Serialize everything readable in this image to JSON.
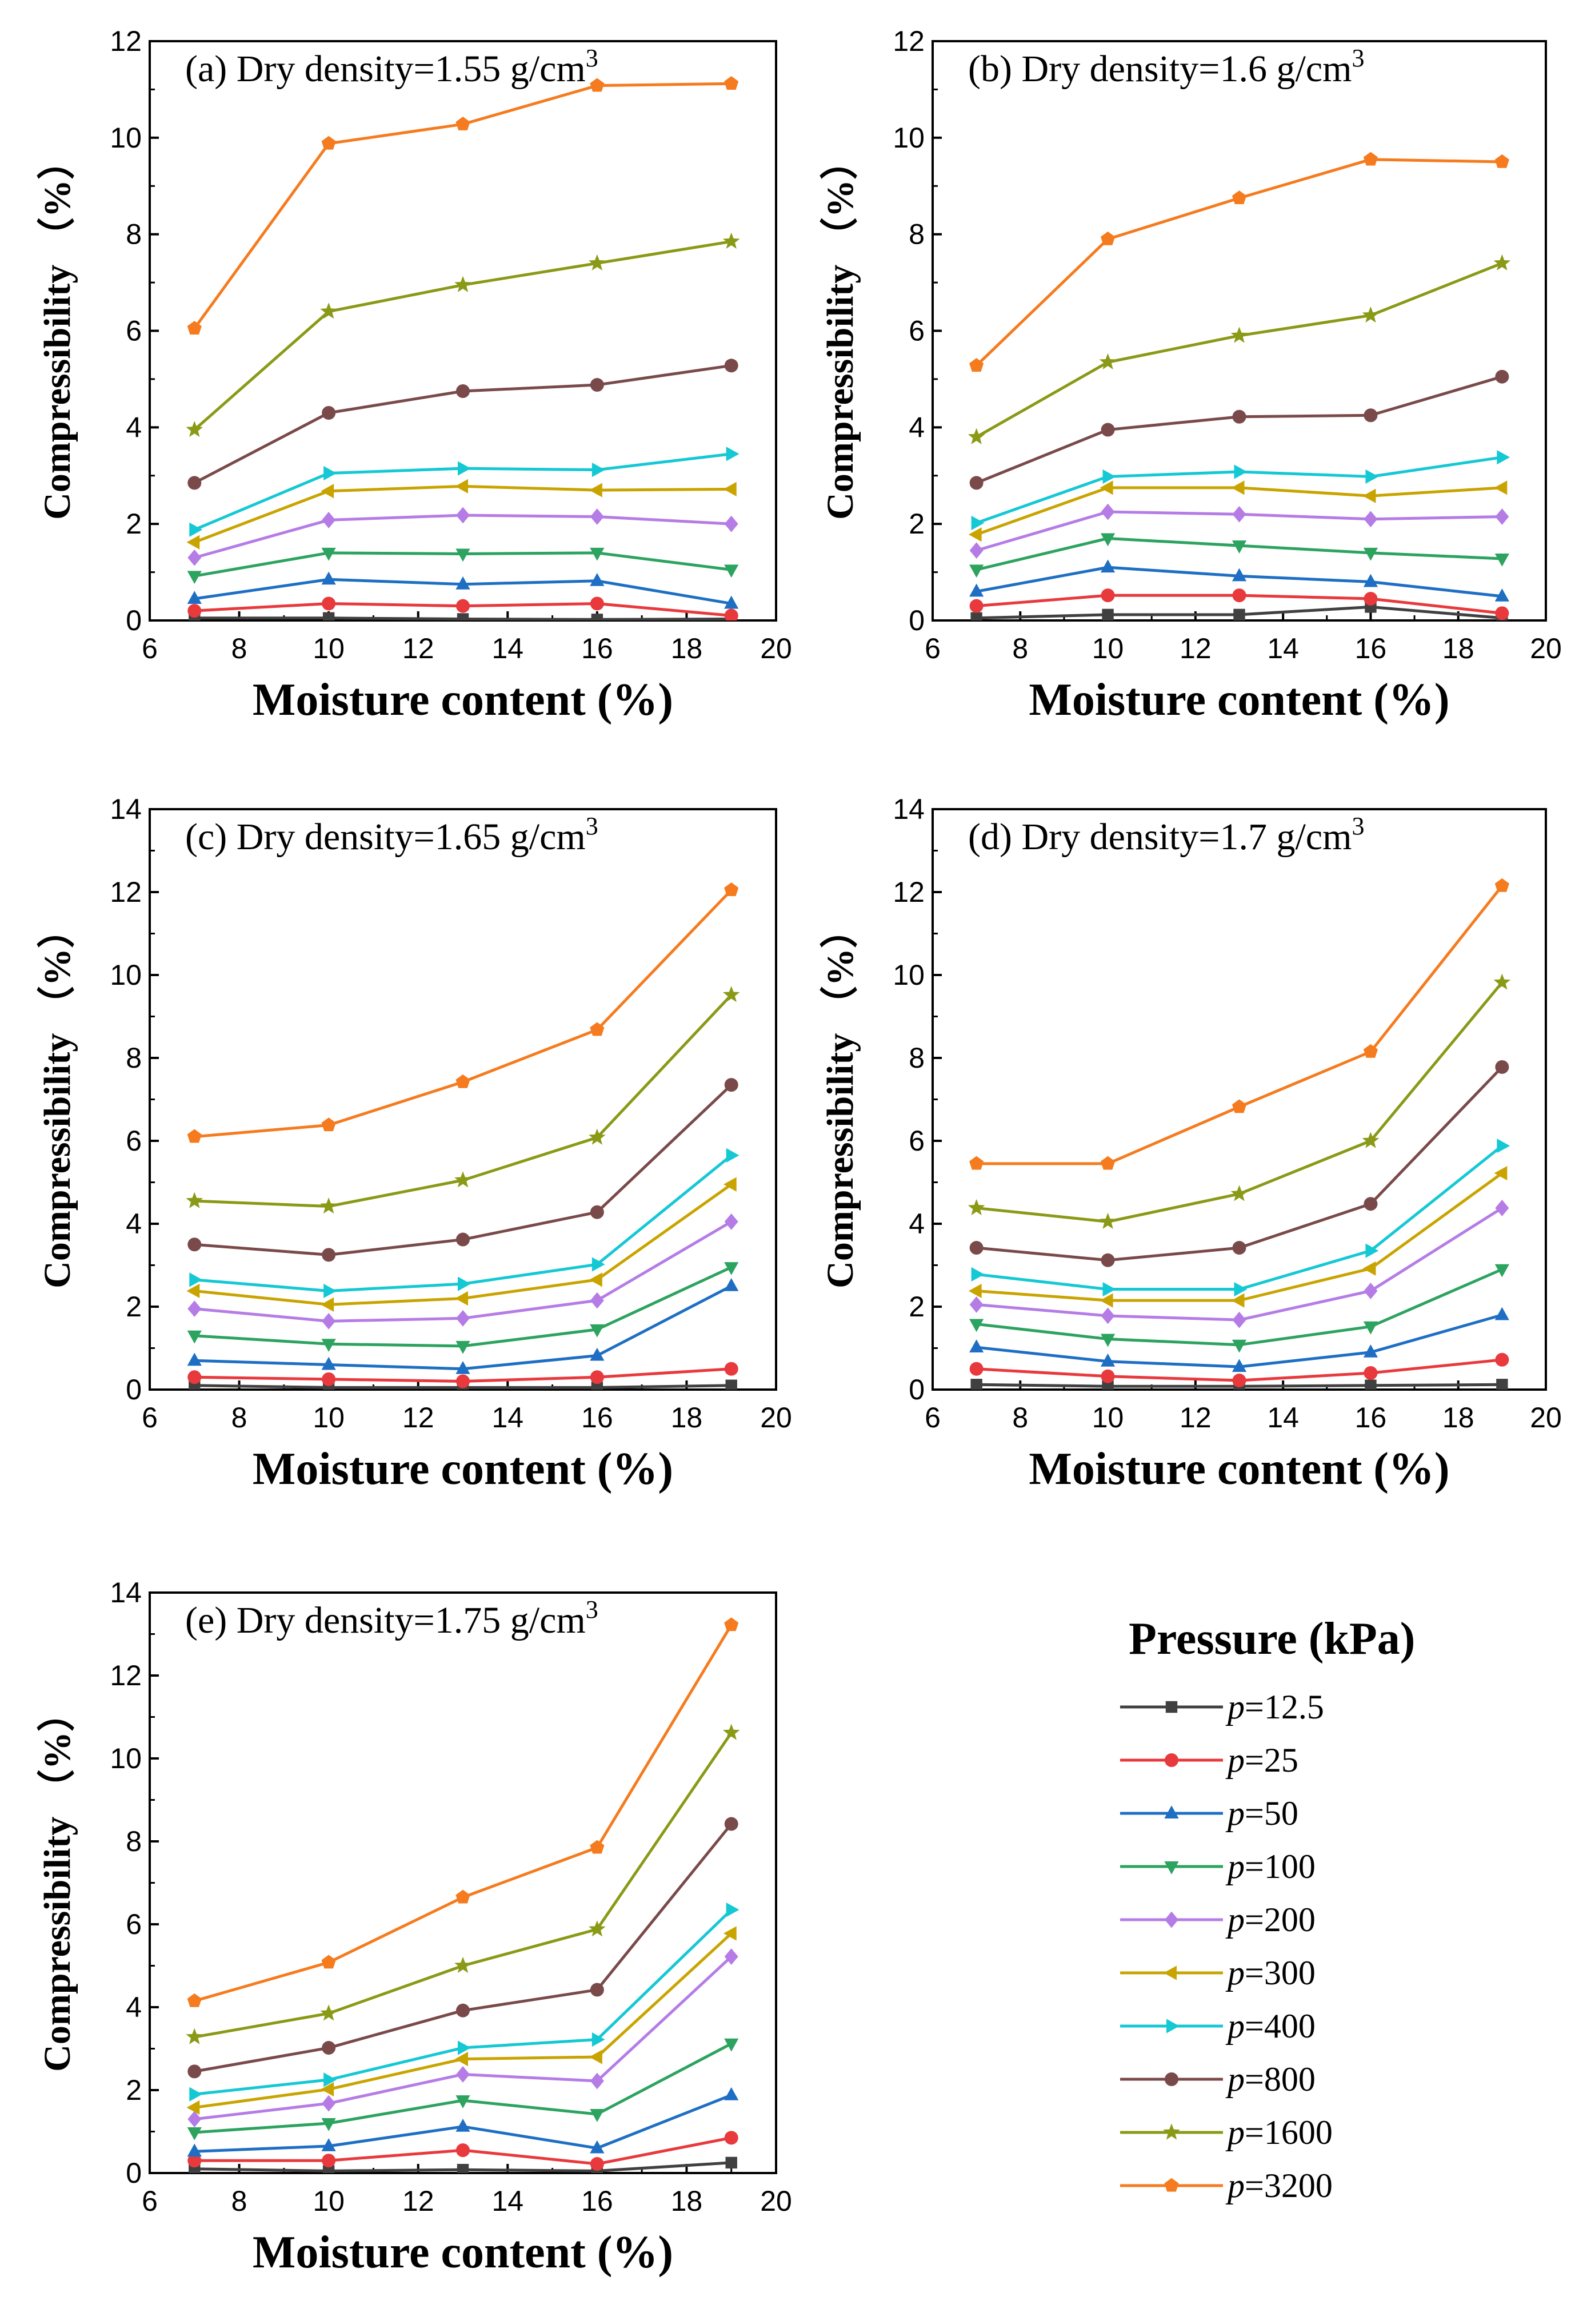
{
  "figure": {
    "legend_title": "Pressure (kPa)"
  },
  "chart_data": [
    {
      "type": "line",
      "title": "(a) Dry density=1.55 g/cm3",
      "title_text": "(a) Dry density=1.55 g/cm",
      "title_sup": "3",
      "xlabel": "Moisture content (%)",
      "ylabel": "Compressibility （%）",
      "xlim": [
        6,
        20
      ],
      "ylim": [
        0,
        12
      ],
      "xticks": [
        6,
        8,
        10,
        12,
        14,
        16,
        18,
        20
      ],
      "yticks": [
        0,
        2,
        4,
        6,
        8,
        10,
        12
      ],
      "x": [
        7,
        10,
        13,
        16,
        19
      ],
      "series": [
        {
          "name": "p=12.5",
          "values": [
            0.05,
            0.05,
            0.03,
            0.02,
            0.03
          ]
        },
        {
          "name": "p=25",
          "values": [
            0.2,
            0.35,
            0.3,
            0.35,
            0.1
          ]
        },
        {
          "name": "p=50",
          "values": [
            0.45,
            0.85,
            0.75,
            0.82,
            0.35
          ]
        },
        {
          "name": "p=100",
          "values": [
            0.92,
            1.4,
            1.38,
            1.4,
            1.05
          ]
        },
        {
          "name": "p=200",
          "values": [
            1.3,
            2.08,
            2.18,
            2.15,
            2.0
          ]
        },
        {
          "name": "p=300",
          "values": [
            1.62,
            2.68,
            2.78,
            2.7,
            2.72
          ]
        },
        {
          "name": "p=400",
          "values": [
            1.88,
            3.05,
            3.15,
            3.12,
            3.45
          ]
        },
        {
          "name": "p=800",
          "values": [
            2.85,
            4.3,
            4.75,
            4.88,
            5.28
          ]
        },
        {
          "name": "p=1600",
          "values": [
            3.95,
            6.4,
            6.95,
            7.4,
            7.85
          ]
        },
        {
          "name": "p=3200",
          "values": [
            6.05,
            9.88,
            10.28,
            11.08,
            11.12
          ]
        }
      ]
    },
    {
      "type": "line",
      "title": "(b) Dry density=1.6 g/cm3",
      "title_text": "(b) Dry density=1.6 g/cm",
      "title_sup": "3",
      "xlabel": "Moisture content (%)",
      "ylabel": "Compressibility （%）",
      "xlim": [
        6,
        20
      ],
      "ylim": [
        0,
        12
      ],
      "xticks": [
        6,
        8,
        10,
        12,
        14,
        16,
        18,
        20
      ],
      "yticks": [
        0,
        2,
        4,
        6,
        8,
        10,
        12
      ],
      "x": [
        7,
        10,
        13,
        16,
        19
      ],
      "series": [
        {
          "name": "p=12.5",
          "values": [
            0.05,
            0.12,
            0.12,
            0.28,
            0.05
          ]
        },
        {
          "name": "p=25",
          "values": [
            0.3,
            0.52,
            0.52,
            0.45,
            0.15
          ]
        },
        {
          "name": "p=50",
          "values": [
            0.6,
            1.1,
            0.92,
            0.8,
            0.5
          ]
        },
        {
          "name": "p=100",
          "values": [
            1.05,
            1.7,
            1.55,
            1.4,
            1.28
          ]
        },
        {
          "name": "p=200",
          "values": [
            1.45,
            2.25,
            2.2,
            2.1,
            2.15
          ]
        },
        {
          "name": "p=300",
          "values": [
            1.78,
            2.75,
            2.75,
            2.58,
            2.75
          ]
        },
        {
          "name": "p=400",
          "values": [
            2.02,
            2.98,
            3.08,
            2.98,
            3.38
          ]
        },
        {
          "name": "p=800",
          "values": [
            2.85,
            3.95,
            4.22,
            4.25,
            5.05
          ]
        },
        {
          "name": "p=1600",
          "values": [
            3.8,
            5.35,
            5.9,
            6.32,
            7.4
          ]
        },
        {
          "name": "p=3200",
          "values": [
            5.28,
            7.9,
            8.75,
            9.55,
            9.5
          ]
        }
      ]
    },
    {
      "type": "line",
      "title": "(c) Dry density=1.65 g/cm3",
      "title_text": "(c) Dry density=1.65 g/cm",
      "title_sup": "3",
      "xlabel": "Moisture content (%)",
      "ylabel": "Compressibility （%）",
      "xlim": [
        6,
        20
      ],
      "ylim": [
        0,
        14
      ],
      "xticks": [
        6,
        8,
        10,
        12,
        14,
        16,
        18,
        20
      ],
      "yticks": [
        0,
        2,
        4,
        6,
        8,
        10,
        12,
        14
      ],
      "x": [
        7,
        10,
        13,
        16,
        19
      ],
      "series": [
        {
          "name": "p=12.5",
          "values": [
            0.1,
            0.05,
            0.05,
            0.05,
            0.1
          ]
        },
        {
          "name": "p=25",
          "values": [
            0.3,
            0.25,
            0.2,
            0.3,
            0.5
          ]
        },
        {
          "name": "p=50",
          "values": [
            0.7,
            0.6,
            0.5,
            0.82,
            2.5
          ]
        },
        {
          "name": "p=100",
          "values": [
            1.3,
            1.1,
            1.05,
            1.45,
            2.95
          ]
        },
        {
          "name": "p=200",
          "values": [
            1.95,
            1.65,
            1.72,
            2.15,
            4.05
          ]
        },
        {
          "name": "p=300",
          "values": [
            2.38,
            2.05,
            2.2,
            2.65,
            4.95
          ]
        },
        {
          "name": "p=400",
          "values": [
            2.65,
            2.38,
            2.55,
            3.02,
            5.65
          ]
        },
        {
          "name": "p=800",
          "values": [
            3.5,
            3.25,
            3.62,
            4.28,
            7.35
          ]
        },
        {
          "name": "p=1600",
          "values": [
            4.55,
            4.42,
            5.05,
            6.08,
            9.52
          ]
        },
        {
          "name": "p=3200",
          "values": [
            6.1,
            6.38,
            7.42,
            8.68,
            12.05
          ]
        }
      ]
    },
    {
      "type": "line",
      "title": "(d) Dry density=1.7 g/cm3",
      "title_text": "(d) Dry density=1.7 g/cm",
      "title_sup": "3",
      "xlabel": "Moisture content (%)",
      "ylabel": "Compressibility （%）",
      "xlim": [
        6,
        20
      ],
      "ylim": [
        0,
        14
      ],
      "xticks": [
        6,
        8,
        10,
        12,
        14,
        16,
        18,
        20
      ],
      "yticks": [
        0,
        2,
        4,
        6,
        8,
        10,
        12,
        14
      ],
      "x": [
        7,
        10,
        13,
        16,
        19
      ],
      "series": [
        {
          "name": "p=12.5",
          "values": [
            0.12,
            0.08,
            0.08,
            0.1,
            0.12
          ]
        },
        {
          "name": "p=25",
          "values": [
            0.5,
            0.32,
            0.22,
            0.4,
            0.72
          ]
        },
        {
          "name": "p=50",
          "values": [
            1.02,
            0.68,
            0.55,
            0.9,
            1.8
          ]
        },
        {
          "name": "p=100",
          "values": [
            1.58,
            1.22,
            1.08,
            1.52,
            2.9
          ]
        },
        {
          "name": "p=200",
          "values": [
            2.05,
            1.78,
            1.68,
            2.38,
            4.38
          ]
        },
        {
          "name": "p=300",
          "values": [
            2.38,
            2.15,
            2.15,
            2.92,
            5.22
          ]
        },
        {
          "name": "p=400",
          "values": [
            2.78,
            2.42,
            2.42,
            3.35,
            5.88
          ]
        },
        {
          "name": "p=800",
          "values": [
            3.42,
            3.12,
            3.42,
            4.48,
            7.78
          ]
        },
        {
          "name": "p=1600",
          "values": [
            4.38,
            4.05,
            4.72,
            6.0,
            9.82
          ]
        },
        {
          "name": "p=3200",
          "values": [
            5.45,
            5.45,
            6.82,
            8.15,
            12.15
          ]
        }
      ]
    },
    {
      "type": "line",
      "title": "(e) Dry density=1.75 g/cm3",
      "title_text": "(e) Dry density=1.75 g/cm",
      "title_sup": "3",
      "xlabel": "Moisture content (%)",
      "ylabel": "Compressibility （%）",
      "xlim": [
        6,
        20
      ],
      "ylim": [
        0,
        14
      ],
      "xticks": [
        6,
        8,
        10,
        12,
        14,
        16,
        18,
        20
      ],
      "yticks": [
        0,
        2,
        4,
        6,
        8,
        10,
        12,
        14
      ],
      "x": [
        7,
        10,
        13,
        16,
        19
      ],
      "series": [
        {
          "name": "p=12.5",
          "values": [
            0.1,
            0.05,
            0.08,
            0.05,
            0.25
          ]
        },
        {
          "name": "p=25",
          "values": [
            0.3,
            0.3,
            0.55,
            0.22,
            0.85
          ]
        },
        {
          "name": "p=50",
          "values": [
            0.52,
            0.65,
            1.12,
            0.6,
            1.88
          ]
        },
        {
          "name": "p=100",
          "values": [
            0.98,
            1.2,
            1.75,
            1.42,
            3.12
          ]
        },
        {
          "name": "p=200",
          "values": [
            1.3,
            1.68,
            2.38,
            2.22,
            5.22
          ]
        },
        {
          "name": "p=300",
          "values": [
            1.58,
            2.02,
            2.75,
            2.8,
            5.78
          ]
        },
        {
          "name": "p=400",
          "values": [
            1.9,
            2.25,
            3.02,
            3.22,
            6.35
          ]
        },
        {
          "name": "p=800",
          "values": [
            2.45,
            3.02,
            3.92,
            4.42,
            8.42
          ]
        },
        {
          "name": "p=1600",
          "values": [
            3.28,
            3.85,
            5.0,
            5.88,
            10.62
          ]
        },
        {
          "name": "p=3200",
          "values": [
            4.15,
            5.08,
            6.65,
            7.85,
            13.22
          ]
        }
      ]
    }
  ],
  "legend": [
    {
      "italic": "p",
      "text": "=12.5",
      "color": "#404040",
      "marker": "square"
    },
    {
      "italic": "p",
      "text": "=25",
      "color": "#e8393d",
      "marker": "circle"
    },
    {
      "italic": "p",
      "text": "=50",
      "color": "#1e6fc4",
      "marker": "triangle-up"
    },
    {
      "italic": "p",
      "text": "=100",
      "color": "#2ca35f",
      "marker": "triangle-down"
    },
    {
      "italic": "p",
      "text": "=200",
      "color": "#b57ce6",
      "marker": "diamond"
    },
    {
      "italic": "p",
      "text": "=300",
      "color": "#c9a400",
      "marker": "triangle-left"
    },
    {
      "italic": "p",
      "text": "=400",
      "color": "#14c8d4",
      "marker": "triangle-right"
    },
    {
      "italic": "p",
      "text": "=800",
      "color": "#7a4a4a",
      "marker": "circle"
    },
    {
      "italic": "p",
      "text": "=1600",
      "color": "#8a9a16",
      "marker": "star"
    },
    {
      "italic": "p",
      "text": "=3200",
      "color": "#f57b1e",
      "marker": "pentagon"
    }
  ]
}
